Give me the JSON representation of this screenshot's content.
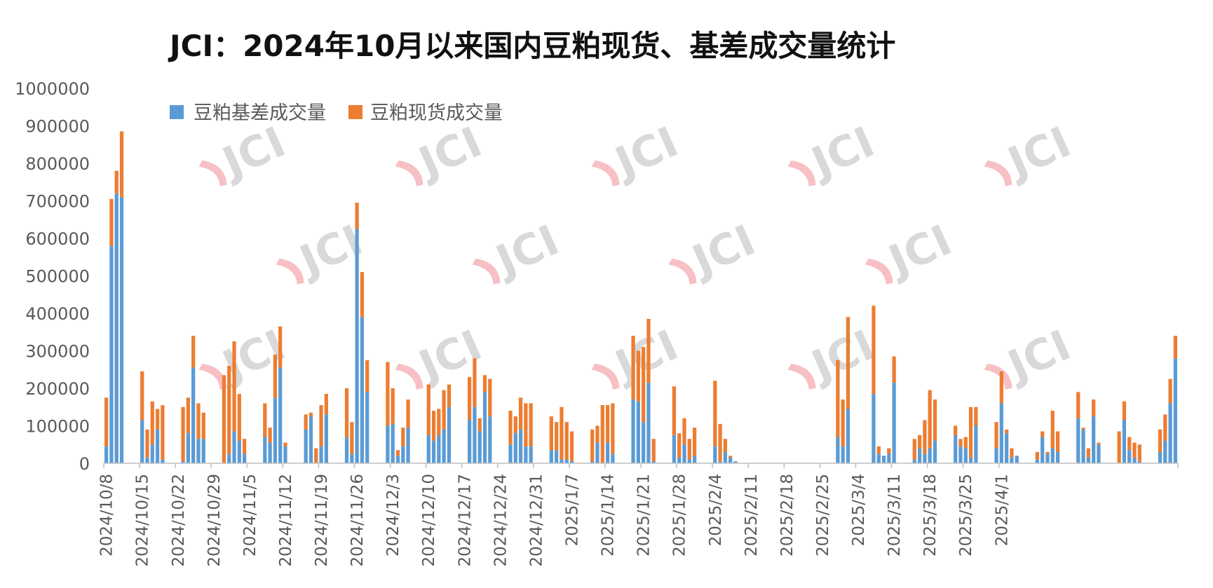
{
  "chart_data": {
    "type": "bar",
    "stacked": true,
    "title": "JCI：2024年10月以来国内豆粕现货、基差成交量统计",
    "watermark": "JCI",
    "ylim": [
      0,
      1000000
    ],
    "yticks": [
      "0",
      "100000",
      "200000",
      "300000",
      "400000",
      "500000",
      "600000",
      "700000",
      "800000",
      "900000",
      "1000000"
    ],
    "xticks": [
      "2024/10/8",
      "2024/10/15",
      "2024/10/22",
      "2024/10/29",
      "2024/11/5",
      "2024/11/12",
      "2024/11/19",
      "2024/11/26",
      "2024/12/3",
      "2024/12/10",
      "2024/12/17",
      "2024/12/24",
      "2024/12/31",
      "2025/1/7",
      "2025/1/14",
      "2025/1/21",
      "2025/1/28",
      "2025/2/4",
      "2025/2/11",
      "2025/2/18",
      "2025/2/25",
      "2025/3/4",
      "2025/3/11",
      "2025/3/18",
      "2025/3/25",
      "2025/4/1"
    ],
    "grid": false,
    "legend_position": "top-left",
    "colors": {
      "basis": "#5b9bd5",
      "spot": "#ed7d31",
      "axis": "#bfbfbf"
    },
    "series": [
      {
        "name": "豆粕基差成交量",
        "values": [
          45000,
          580000,
          720000,
          710000,
          0,
          0,
          0,
          115000,
          15000,
          50000,
          90000,
          10000,
          0,
          0,
          0,
          5000,
          80000,
          255000,
          65000,
          65000,
          0,
          0,
          0,
          0,
          25000,
          85000,
          60000,
          25000,
          0,
          0,
          0,
          70000,
          55000,
          175000,
          255000,
          45000,
          0,
          0,
          0,
          90000,
          125000,
          0,
          45000,
          130000,
          0,
          0,
          0,
          70000,
          25000,
          625000,
          390000,
          190000,
          0,
          0,
          0,
          100000,
          105000,
          20000,
          45000,
          95000,
          0,
          0,
          0,
          75000,
          60000,
          75000,
          90000,
          150000,
          0,
          0,
          0,
          115000,
          150000,
          85000,
          190000,
          125000,
          0,
          0,
          0,
          50000,
          80000,
          90000,
          45000,
          45000,
          0,
          0,
          0,
          35000,
          35000,
          10000,
          10000,
          5000,
          0,
          0,
          0,
          5000,
          55000,
          0,
          55000,
          25000,
          0,
          0,
          0,
          170000,
          165000,
          110000,
          215000,
          5000,
          0,
          0,
          0,
          75000,
          15000,
          50000,
          10000,
          20000,
          0,
          0,
          0,
          45000,
          5000,
          30000,
          15000,
          5000,
          0,
          0,
          0,
          0,
          0,
          0,
          0,
          0,
          0,
          0,
          0,
          0,
          0,
          0,
          0,
          0,
          0,
          0,
          0,
          70000,
          45000,
          145000,
          0,
          0,
          0,
          0,
          185000,
          25000,
          20000,
          25000,
          215000,
          0,
          0,
          0,
          10000,
          40000,
          25000,
          40000,
          60000,
          0,
          0,
          0,
          75000,
          45000,
          40000,
          15000,
          100000,
          0,
          0,
          0,
          40000,
          160000,
          80000,
          15000,
          20000,
          0,
          0,
          0,
          10000,
          70000,
          25000,
          40000,
          30000,
          0,
          0,
          0,
          120000,
          90000,
          15000,
          125000,
          50000,
          0,
          0,
          0,
          0,
          115000,
          35000,
          15000,
          5000,
          0,
          0,
          0,
          30000,
          60000,
          160000,
          280000
        ]
      },
      {
        "name": "豆粕现货成交量",
        "values": [
          130000,
          125000,
          60000,
          175000,
          0,
          0,
          0,
          130000,
          75000,
          115000,
          55000,
          145000,
          0,
          0,
          0,
          145000,
          95000,
          85000,
          95000,
          70000,
          0,
          0,
          0,
          235000,
          235000,
          240000,
          125000,
          40000,
          0,
          0,
          0,
          90000,
          40000,
          115000,
          110000,
          10000,
          0,
          0,
          0,
          40000,
          10000,
          40000,
          110000,
          55000,
          0,
          0,
          0,
          130000,
          85000,
          70000,
          120000,
          85000,
          0,
          0,
          0,
          170000,
          95000,
          15000,
          50000,
          75000,
          0,
          0,
          0,
          135000,
          80000,
          70000,
          105000,
          60000,
          0,
          0,
          0,
          115000,
          130000,
          35000,
          45000,
          100000,
          0,
          0,
          0,
          90000,
          45000,
          85000,
          115000,
          115000,
          0,
          0,
          0,
          90000,
          75000,
          140000,
          100000,
          80000,
          0,
          0,
          0,
          85000,
          45000,
          155000,
          100000,
          135000,
          0,
          0,
          0,
          170000,
          135000,
          200000,
          170000,
          60000,
          0,
          0,
          0,
          130000,
          65000,
          70000,
          55000,
          75000,
          0,
          0,
          0,
          175000,
          100000,
          35000,
          5000,
          0,
          0,
          0,
          0,
          0,
          0,
          0,
          0,
          0,
          0,
          0,
          0,
          0,
          0,
          0,
          0,
          0,
          0,
          0,
          0,
          205000,
          125000,
          245000,
          0,
          0,
          0,
          0,
          235000,
          20000,
          0,
          15000,
          70000,
          0,
          0,
          0,
          55000,
          35000,
          90000,
          155000,
          110000,
          0,
          0,
          0,
          25000,
          20000,
          30000,
          135000,
          50000,
          0,
          0,
          0,
          70000,
          85000,
          10000,
          25000,
          0,
          0,
          0,
          0,
          20000,
          15000,
          5000,
          100000,
          55000,
          0,
          0,
          0,
          70000,
          5000,
          25000,
          45000,
          5000,
          0,
          0,
          0,
          85000,
          50000,
          35000,
          40000,
          45000,
          0,
          0,
          0,
          60000,
          70000,
          65000,
          60000
        ]
      }
    ]
  }
}
